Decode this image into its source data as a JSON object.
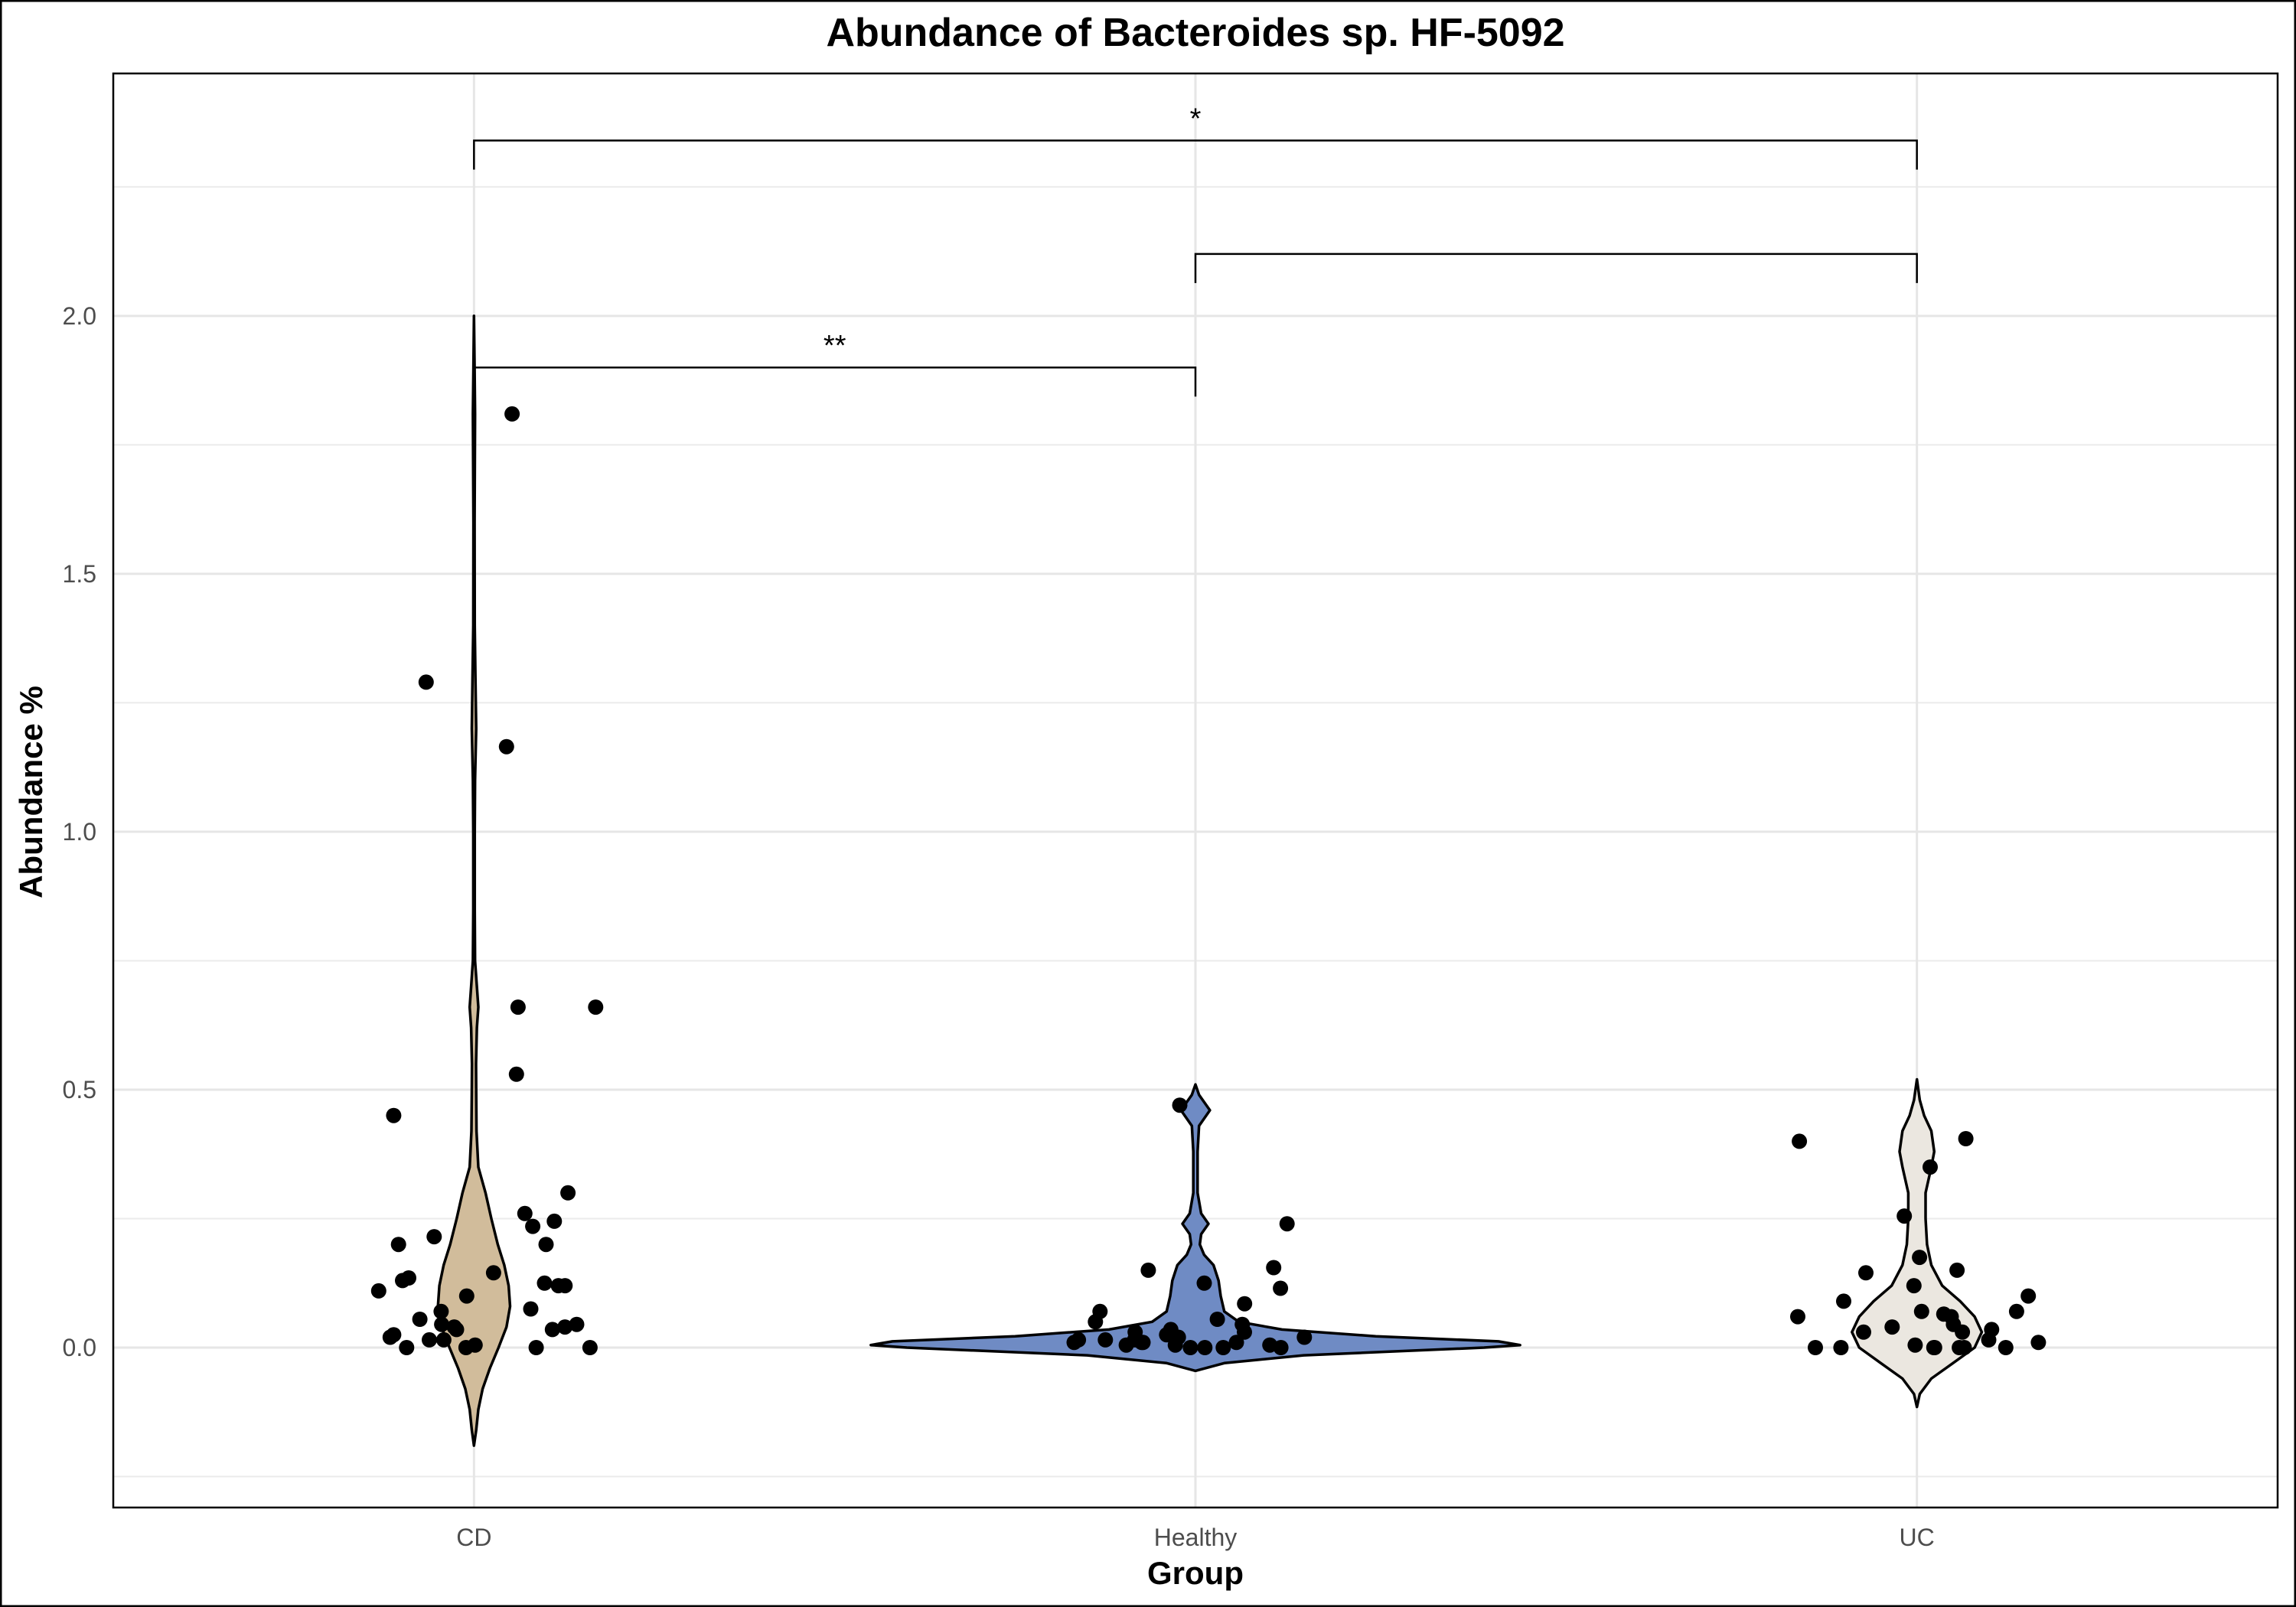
{
  "chart_data": {
    "type": "violin",
    "title": "Abundance of Bacteroides sp. HF-5092",
    "xlabel": "Group",
    "ylabel": "Abundance %",
    "ylim": [
      -0.31,
      2.47
    ],
    "yticks": [
      0.0,
      0.5,
      1.0,
      1.5,
      2.0
    ],
    "ytick_labels": [
      "0.0",
      "0.5",
      "1.0",
      "1.5",
      "2.0"
    ],
    "grid": true,
    "categories": [
      "CD",
      "Healthy",
      "UC"
    ],
    "colors": {
      "CD": "#d1bc9b",
      "Healthy": "#6f8bc4",
      "UC": "#ebe7e0"
    },
    "violins": [
      {
        "group": "CD",
        "profile": [
          [
            -0.19,
            0.0
          ],
          [
            -0.16,
            0.003
          ],
          [
            -0.12,
            0.006
          ],
          [
            -0.08,
            0.012
          ],
          [
            -0.04,
            0.022
          ],
          [
            0.0,
            0.034
          ],
          [
            0.04,
            0.045
          ],
          [
            0.08,
            0.05
          ],
          [
            0.12,
            0.048
          ],
          [
            0.16,
            0.042
          ],
          [
            0.2,
            0.033
          ],
          [
            0.25,
            0.024
          ],
          [
            0.3,
            0.016
          ],
          [
            0.35,
            0.006
          ],
          [
            0.42,
            0.0035
          ],
          [
            0.5,
            0.003
          ],
          [
            0.55,
            0.0028
          ],
          [
            0.62,
            0.004
          ],
          [
            0.66,
            0.006
          ],
          [
            0.7,
            0.004
          ],
          [
            0.75,
            0.0015
          ],
          [
            0.85,
            0.001
          ],
          [
            1.0,
            0.001
          ],
          [
            1.1,
            0.0015
          ],
          [
            1.2,
            0.003
          ],
          [
            1.3,
            0.002
          ],
          [
            1.4,
            0.001
          ],
          [
            1.6,
            0.0008
          ],
          [
            1.81,
            0.0015
          ],
          [
            1.9,
            0.0008
          ],
          [
            2.0,
            0.0
          ]
        ]
      },
      {
        "group": "Healthy",
        "profile": [
          [
            -0.045,
            0.0
          ],
          [
            -0.03,
            0.04
          ],
          [
            -0.015,
            0.15
          ],
          [
            0.0,
            0.4
          ],
          [
            0.005,
            0.45
          ],
          [
            0.012,
            0.42
          ],
          [
            0.022,
            0.25
          ],
          [
            0.035,
            0.12
          ],
          [
            0.05,
            0.06
          ],
          [
            0.07,
            0.04
          ],
          [
            0.1,
            0.035
          ],
          [
            0.13,
            0.032
          ],
          [
            0.16,
            0.025
          ],
          [
            0.18,
            0.012
          ],
          [
            0.2,
            0.006
          ],
          [
            0.22,
            0.008
          ],
          [
            0.24,
            0.018
          ],
          [
            0.26,
            0.008
          ],
          [
            0.3,
            0.003
          ],
          [
            0.38,
            0.003
          ],
          [
            0.43,
            0.005
          ],
          [
            0.46,
            0.02
          ],
          [
            0.49,
            0.005
          ],
          [
            0.51,
            0.0
          ]
        ]
      },
      {
        "group": "UC",
        "profile": [
          [
            -0.115,
            0.0
          ],
          [
            -0.09,
            0.004
          ],
          [
            -0.06,
            0.02
          ],
          [
            -0.03,
            0.05
          ],
          [
            0.0,
            0.08
          ],
          [
            0.03,
            0.09
          ],
          [
            0.06,
            0.08
          ],
          [
            0.09,
            0.06
          ],
          [
            0.12,
            0.035
          ],
          [
            0.16,
            0.02
          ],
          [
            0.2,
            0.014
          ],
          [
            0.25,
            0.012
          ],
          [
            0.3,
            0.012
          ],
          [
            0.35,
            0.02
          ],
          [
            0.38,
            0.024
          ],
          [
            0.42,
            0.02
          ],
          [
            0.45,
            0.01
          ],
          [
            0.48,
            0.004
          ],
          [
            0.52,
            0.0
          ]
        ]
      }
    ],
    "points": [
      {
        "group": "CD",
        "values": [
          1.81,
          1.29,
          1.165,
          0.66,
          0.66,
          0.53,
          0.45,
          0.3,
          0.26,
          0.245,
          0.235,
          0.215,
          0.2,
          0.2,
          0.145,
          0.135,
          0.13,
          0.125,
          0.12,
          0.12,
          0.11,
          0.1,
          0.075,
          0.07,
          0.055,
          0.045,
          0.045,
          0.04,
          0.04,
          0.035,
          0.035,
          0.025,
          0.02,
          0.015,
          0.015,
          0.005,
          0.0,
          0.0,
          0.0,
          0.0
        ]
      },
      {
        "group": "Healthy",
        "values": [
          0.47,
          0.24,
          0.155,
          0.15,
          0.125,
          0.115,
          0.085,
          0.07,
          0.055,
          0.05,
          0.045,
          0.035,
          0.03,
          0.03,
          0.025,
          0.025,
          0.02,
          0.02,
          0.02,
          0.015,
          0.015,
          0.015,
          0.01,
          0.01,
          0.01,
          0.01,
          0.005,
          0.005,
          0.005,
          0.0,
          0.0,
          0.0,
          0.0
        ]
      },
      {
        "group": "UC",
        "values": [
          0.405,
          0.4,
          0.35,
          0.255,
          0.175,
          0.15,
          0.145,
          0.12,
          0.1,
          0.09,
          0.07,
          0.07,
          0.065,
          0.06,
          0.06,
          0.045,
          0.04,
          0.035,
          0.03,
          0.03,
          0.015,
          0.01,
          0.005,
          0.0,
          0.0,
          0.0,
          0.0,
          0.0,
          0.0,
          0.0
        ]
      }
    ],
    "significance": [
      {
        "from": "CD",
        "to": "UC",
        "y": 2.34,
        "label": "*"
      },
      {
        "from": "Healthy",
        "to": "UC",
        "y": 2.12,
        "label": ""
      },
      {
        "from": "CD",
        "to": "Healthy",
        "y": 1.9,
        "label": "**"
      }
    ]
  }
}
